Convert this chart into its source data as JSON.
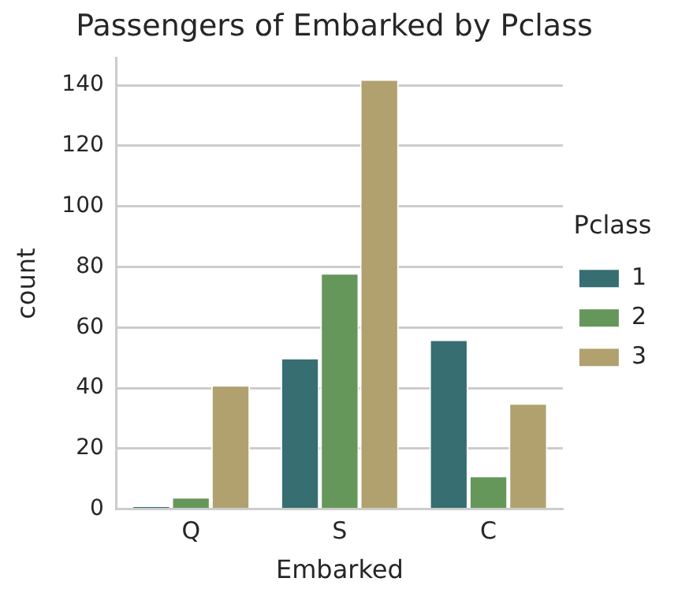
{
  "chart_data": {
    "type": "bar",
    "title": "Passengers of Embarked by Pclass",
    "xlabel": "Embarked",
    "ylabel": "count",
    "legend_title": "Pclass",
    "categories": [
      "Q",
      "S",
      "C"
    ],
    "series": [
      {
        "name": "1",
        "color": "#366e72",
        "values": [
          1,
          50,
          56
        ]
      },
      {
        "name": "2",
        "color": "#66975a",
        "values": [
          4,
          78,
          11
        ]
      },
      {
        "name": "3",
        "color": "#b0a16f",
        "values": [
          41,
          142,
          35
        ]
      }
    ],
    "ylim": [
      0,
      149
    ],
    "yticks": [
      0,
      20,
      40,
      60,
      80,
      100,
      120,
      140
    ],
    "grid": "y",
    "legend": "right"
  }
}
